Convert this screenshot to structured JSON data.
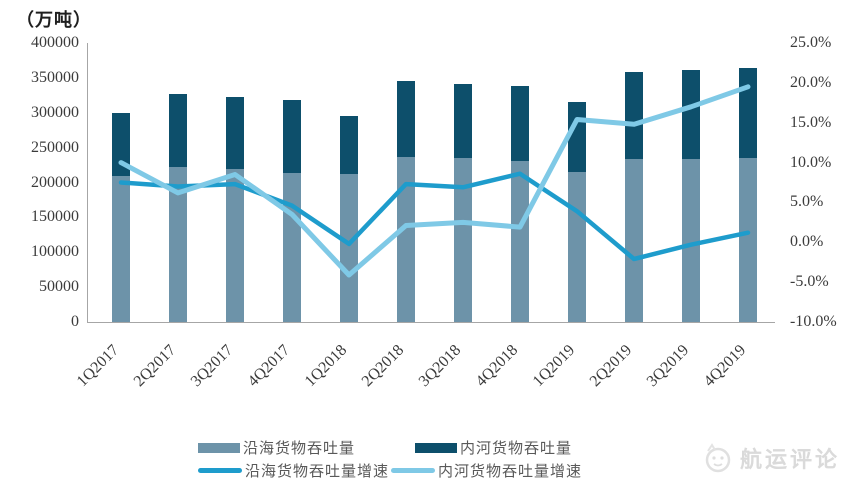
{
  "title_unit": "（万吨）",
  "colors": {
    "axis": "#a6a6a6",
    "tick_text": "#3b3b3b",
    "legend_text": "#595959",
    "logo": "#dadada",
    "background": "#ffffff"
  },
  "chart_data": {
    "type": "bar",
    "subtype": "stacked-bars-with-lines",
    "title": "（万吨）",
    "categories": [
      "1Q2017",
      "2Q2017",
      "3Q2017",
      "4Q2017",
      "1Q2018",
      "2Q2018",
      "3Q2018",
      "4Q2018",
      "1Q2019",
      "2Q2019",
      "3Q2019",
      "4Q2019"
    ],
    "series": [
      {
        "name": "沿海货物吞吐量",
        "type": "bar",
        "axis": "left",
        "color": "#6d93a9",
        "values": [
          209000,
          222000,
          219500,
          213000,
          211500,
          237000,
          235000,
          231500,
          214500,
          233500,
          233500,
          234500
        ]
      },
      {
        "name": "内河货物吞吐量",
        "type": "bar",
        "axis": "left",
        "color": "#0d4f6b",
        "values": [
          90500,
          104500,
          103500,
          105000,
          84000,
          108000,
          106500,
          107500,
          101000,
          125500,
          128500,
          130000
        ]
      },
      {
        "name": "沿海货物吞吐量增速",
        "type": "line",
        "axis": "right",
        "color": "#1e9ccc",
        "values": [
          7.5,
          7.0,
          7.3,
          4.6,
          -0.2,
          7.3,
          6.9,
          8.6,
          3.9,
          -2.1,
          -0.3,
          1.2
        ]
      },
      {
        "name": "内河货物吞吐量增速",
        "type": "line",
        "axis": "right",
        "color": "#7fc9e6",
        "values": [
          10.0,
          6.2,
          8.5,
          3.5,
          -4.1,
          2.1,
          2.5,
          1.9,
          15.4,
          14.8,
          17.0,
          19.5
        ]
      }
    ],
    "stacked_bars": true,
    "left_axis": {
      "min": 0,
      "max": 400000,
      "step": 50000,
      "unit": "万吨",
      "labels": [
        "400000",
        "350000",
        "300000",
        "250000",
        "200000",
        "150000",
        "100000",
        "50000",
        "0"
      ]
    },
    "right_axis": {
      "min": -10,
      "max": 25,
      "step": 5,
      "format": "percent",
      "labels": [
        "25.0%",
        "20.0%",
        "15.0%",
        "10.0%",
        "5.0%",
        "0.0%",
        "-5.0%",
        "-10.0%"
      ]
    },
    "grid": false,
    "legend_position": "bottom"
  },
  "legend": {
    "row1": [
      {
        "label": "沿海货物吞吐量"
      },
      {
        "label": "内河货物吞吐量"
      }
    ],
    "row2": [
      {
        "label": "沿海货物吞吐量增速"
      },
      {
        "label": "内河货物吞吐量增速"
      }
    ]
  },
  "logo": {
    "text": "航运评论"
  }
}
